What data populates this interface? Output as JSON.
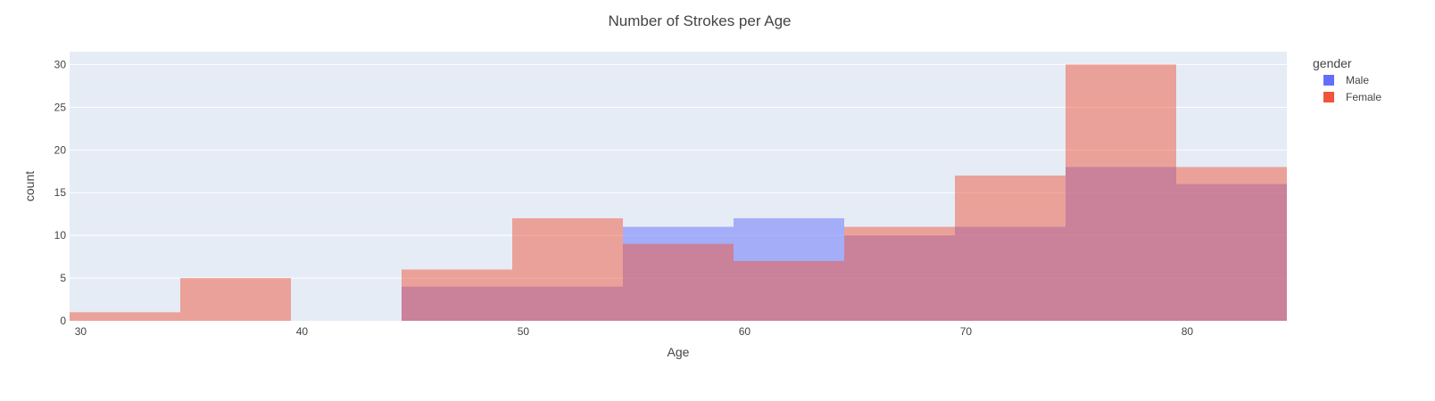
{
  "chart_data": {
    "type": "bar",
    "title": "Number of Strokes per Age",
    "xlabel": "Age",
    "ylabel": "count",
    "xlim": [
      29.5,
      84.5
    ],
    "ylim": [
      0,
      31.5
    ],
    "grid": true,
    "legend_position": "top-right",
    "legend_title": "gender",
    "x_ticks": [
      30,
      40,
      50,
      60,
      70,
      80
    ],
    "y_ticks": [
      0,
      5,
      10,
      15,
      20,
      25,
      30
    ],
    "bin_edges": [
      29.5,
      34.5,
      39.5,
      44.5,
      49.5,
      54.5,
      59.5,
      64.5,
      69.5,
      74.5,
      79.5,
      84.5
    ],
    "series": [
      {
        "name": "Male",
        "color": "#636efa",
        "values": [
          0,
          0,
          0,
          4,
          4,
          11,
          12,
          10,
          11,
          18,
          16
        ]
      },
      {
        "name": "Female",
        "color": "#ef553b",
        "values": [
          1,
          5,
          0,
          6,
          12,
          9,
          7,
          11,
          17,
          30,
          18
        ]
      }
    ]
  }
}
